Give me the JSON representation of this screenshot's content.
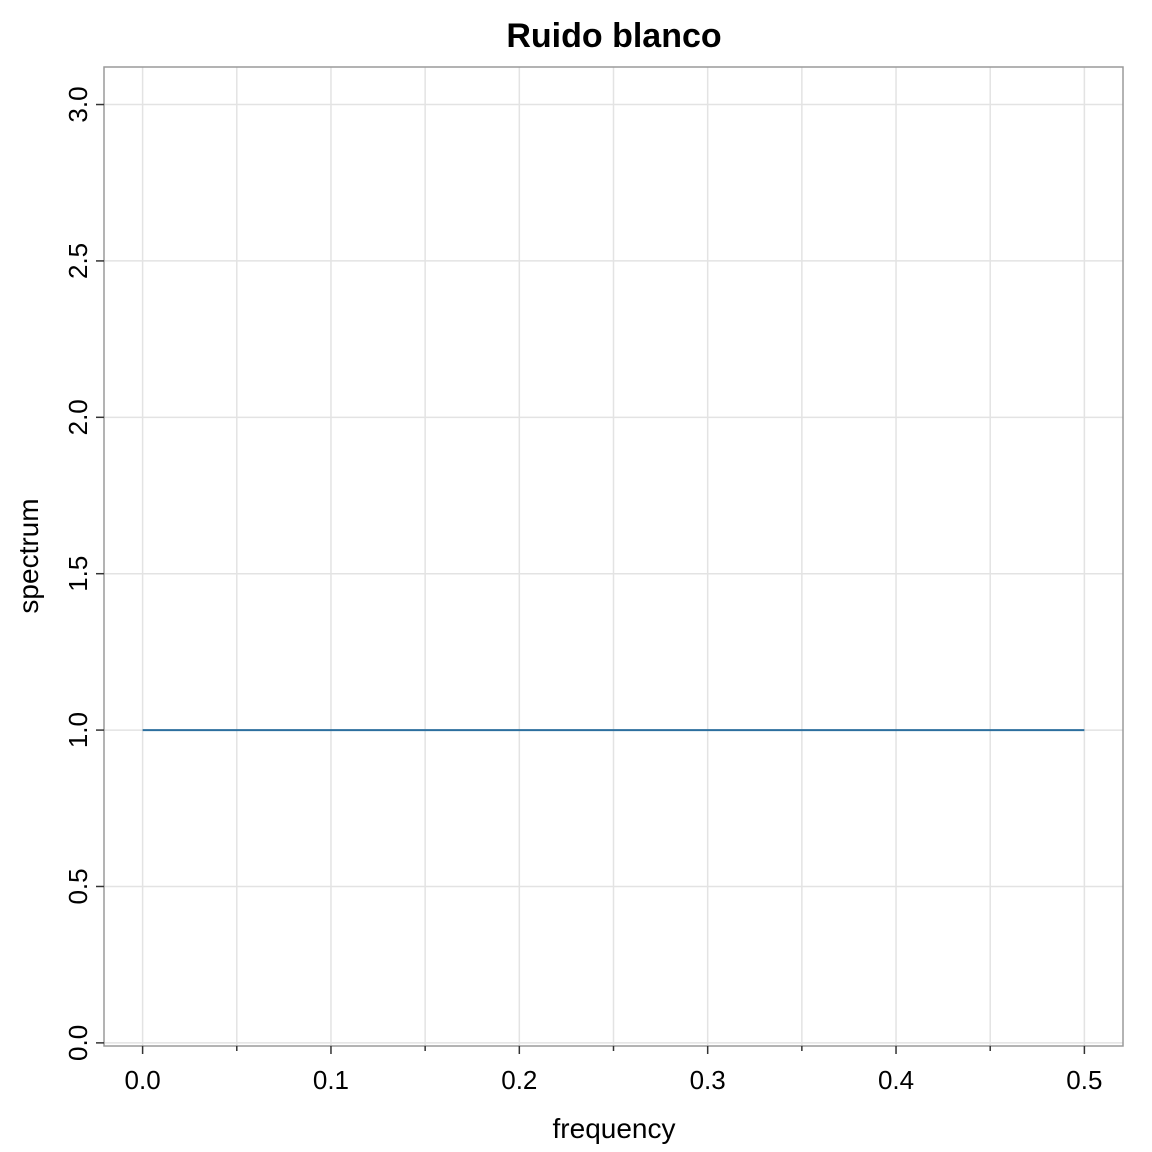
{
  "chart_data": {
    "type": "line",
    "title": "Ruido blanco",
    "xlabel": "frequency",
    "ylabel": "spectrum",
    "xlim": [
      -0.0205,
      0.5205
    ],
    "ylim": [
      -0.01,
      3.12
    ],
    "x_ticks": [
      0.0,
      0.1,
      0.2,
      0.3,
      0.4,
      0.5
    ],
    "x_tick_labels": [
      "0.0",
      "0.1",
      "0.2",
      "0.3",
      "0.4",
      "0.5"
    ],
    "x_minor_ticks": [
      0.05,
      0.15,
      0.25,
      0.35,
      0.45
    ],
    "y_ticks": [
      0.0,
      0.5,
      1.0,
      1.5,
      2.0,
      2.5,
      3.0
    ],
    "y_tick_labels": [
      "0.0",
      "0.5",
      "1.0",
      "1.5",
      "2.0",
      "2.5",
      "3.0"
    ],
    "grid": true,
    "grid_color": "#e3e3e3",
    "frame_color": "#9a9a9a",
    "series": [
      {
        "color": "#2c6f9e",
        "x": [
          0.0,
          0.5
        ],
        "y": [
          1.0,
          1.0
        ]
      }
    ]
  }
}
